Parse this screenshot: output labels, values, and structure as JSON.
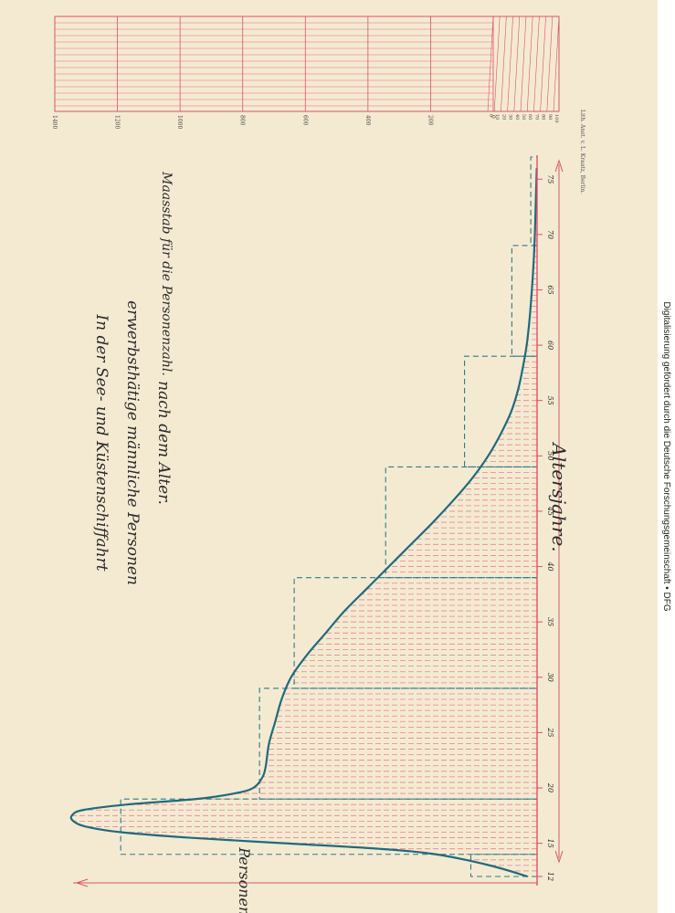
{
  "chart_data": {
    "type": "area",
    "title": [
      "In der See- und Küstenschiffahrt",
      "erwerbsthätige männliche Personen",
      "nach dem Alter."
    ],
    "xlabel": "Altersjahre.",
    "ylabel": "Personenzahl.",
    "x_ticks": [
      12,
      15,
      20,
      25,
      30,
      35,
      40,
      45,
      50,
      55,
      60,
      65,
      70,
      75
    ],
    "xlim": [
      12,
      77
    ],
    "ylim": [
      0,
      1500
    ],
    "curve": {
      "x": [
        12,
        13,
        14,
        14.5,
        15,
        15.5,
        16,
        16.5,
        17,
        17.5,
        18,
        18.5,
        19,
        19.5,
        20,
        21,
        22,
        24,
        26,
        28,
        30,
        32,
        34,
        36,
        38,
        40,
        42,
        44,
        46,
        48,
        50,
        52,
        54,
        56,
        58,
        60,
        62,
        64,
        66,
        68,
        70,
        72,
        74,
        76
      ],
      "y": [
        30,
        150,
        320,
        500,
        800,
        1100,
        1320,
        1430,
        1470,
        1475,
        1440,
        1300,
        1080,
        960,
        900,
        870,
        860,
        850,
        830,
        810,
        780,
        730,
        670,
        610,
        540,
        470,
        400,
        330,
        265,
        205,
        155,
        115,
        82,
        60,
        45,
        33,
        25,
        19,
        14,
        10,
        7,
        5,
        3,
        1
      ]
    },
    "steps": [
      {
        "x0": 12,
        "x1": 14,
        "value": 210
      },
      {
        "x0": 14,
        "x1": 19,
        "value": 1320
      },
      {
        "x0": 19,
        "x1": 29,
        "value": 880
      },
      {
        "x0": 29,
        "x1": 39,
        "value": 770
      },
      {
        "x0": 39,
        "x1": 49,
        "value": 480
      },
      {
        "x0": 49,
        "x1": 59,
        "value": 230
      },
      {
        "x0": 59,
        "x1": 69,
        "value": 80
      },
      {
        "x0": 69,
        "x1": 77,
        "value": 20
      }
    ],
    "scale": {
      "label": "Maasstab für die Personenzahl.",
      "ticks": [
        0,
        200,
        400,
        600,
        800,
        1000,
        1200,
        1400
      ],
      "small_ticks": [
        0,
        10,
        20,
        30,
        40,
        50,
        60,
        70,
        80,
        90,
        100
      ]
    },
    "printer": "Lith. Anst. v. L. Kraatz, Berlin."
  },
  "sidebar": {
    "text": "Digitalisierung gefördert durch die Deutsche Forschungsgemeinschaft • DFG"
  }
}
